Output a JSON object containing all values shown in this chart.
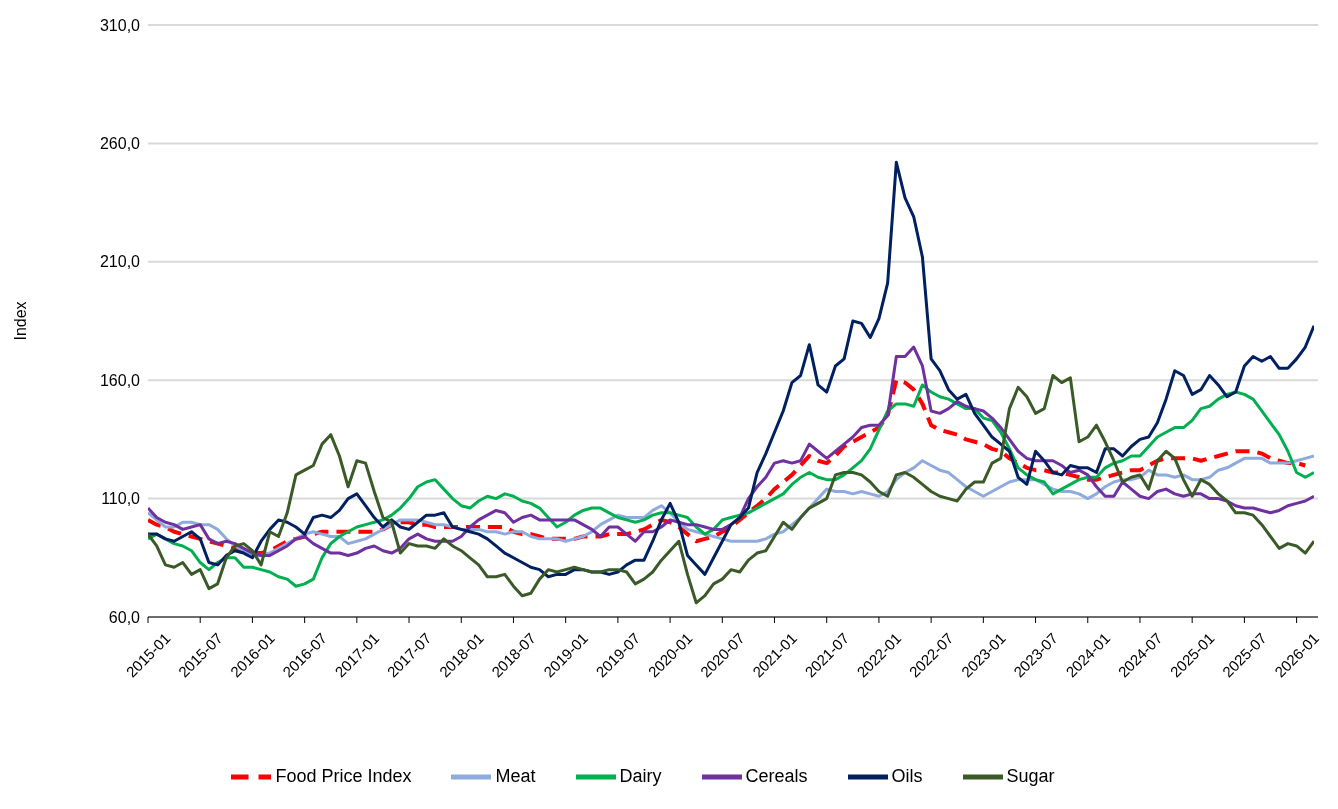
{
  "chart_data": {
    "type": "line",
    "ylabel": "Index",
    "categories": [
      "2015-01",
      null,
      null,
      null,
      null,
      null,
      "2015-07",
      null,
      null,
      null,
      null,
      null,
      "2016-01",
      null,
      null,
      null,
      null,
      null,
      "2016-07",
      null,
      null,
      null,
      null,
      null,
      "2017-01",
      null,
      null,
      null,
      null,
      null,
      "2017-07",
      null,
      null,
      null,
      null,
      null,
      "2018-01",
      null,
      null,
      null,
      null,
      null,
      "2018-07",
      null,
      null,
      null,
      null,
      null,
      "2019-01",
      null,
      null,
      null,
      null,
      null,
      "2019-07",
      null,
      null,
      null,
      null,
      null,
      "2020-01",
      null,
      null,
      null,
      null,
      null,
      "2020-07",
      null,
      null,
      null,
      null,
      null,
      "2021-01",
      null,
      null,
      null,
      null,
      null,
      "2021-07",
      null,
      null,
      null,
      null,
      null,
      "2022-01",
      null,
      null,
      null,
      null,
      null,
      "2022-07",
      null,
      null,
      null,
      null,
      null,
      "2023-01",
      null,
      null,
      null,
      null,
      null,
      "2023-07",
      null,
      null,
      null,
      null,
      null,
      "2024-01",
      null,
      null,
      null,
      null,
      null,
      "2024-07",
      null,
      null,
      null,
      null,
      null,
      "2025-01",
      null,
      null,
      null,
      null,
      null,
      "2025-07",
      null,
      null,
      null,
      null,
      null,
      "2026-01",
      null,
      null
    ],
    "ylim": [
      60,
      310
    ],
    "yticks": [
      {
        "value": 60,
        "label": "60,0"
      },
      {
        "value": 110,
        "label": "110,0"
      },
      {
        "value": 160,
        "label": "160,0"
      },
      {
        "value": 210,
        "label": "210,0"
      },
      {
        "value": 260,
        "label": "260,0"
      },
      {
        "value": 310,
        "label": "310,0"
      }
    ],
    "grid": "y",
    "legend": "bottom",
    "marker": "none",
    "series": [
      {
        "name": "Food Price Index",
        "color": "#ff0000",
        "line_style": "dashed",
        "values": [
          101,
          99,
          98,
          96,
          95,
          94,
          93,
          92,
          91,
          90,
          89,
          88,
          87,
          87,
          88,
          90,
          92,
          93,
          94,
          95,
          96,
          96,
          96,
          96,
          96,
          96,
          96,
          97,
          99,
          100,
          100,
          99,
          99,
          98,
          98,
          98,
          98,
          98,
          98,
          98,
          98,
          98,
          96,
          95,
          95,
          94,
          93,
          93,
          93,
          93,
          94,
          94,
          94,
          95,
          95,
          95,
          96,
          97,
          99,
          101,
          100,
          98,
          95,
          92,
          93,
          94,
          96,
          98,
          101,
          104,
          107,
          110,
          114,
          117,
          120,
          124,
          128,
          126,
          125,
          128,
          132,
          134,
          136,
          138,
          140,
          145,
          160,
          159,
          156,
          150,
          141,
          139,
          138,
          137,
          135,
          134,
          133,
          131,
          130,
          127,
          125,
          123,
          122,
          122,
          121,
          121,
          120,
          119,
          118,
          118,
          119,
          120,
          121,
          122,
          122,
          124,
          126,
          127,
          127,
          127,
          127,
          126,
          127,
          128,
          129,
          130,
          130,
          130,
          129,
          127,
          126,
          125,
          125,
          124,
          null
        ]
      },
      {
        "name": "Meat",
        "color": "#8faadc",
        "line_style": "solid",
        "values": [
          104,
          101,
          98,
          98,
          100,
          100,
          99,
          99,
          97,
          93,
          90,
          88,
          86,
          86,
          87,
          89,
          91,
          93,
          95,
          96,
          95,
          94,
          94,
          91,
          92,
          93,
          95,
          97,
          99,
          101,
          101,
          101,
          100,
          99,
          99,
          98,
          97,
          97,
          97,
          96,
          96,
          95,
          96,
          96,
          94,
          93,
          93,
          93,
          92,
          93,
          94,
          96,
          99,
          101,
          103,
          102,
          102,
          102,
          105,
          107,
          104,
          100,
          97,
          96,
          95,
          94,
          93,
          92,
          92,
          92,
          92,
          93,
          95,
          96,
          99,
          102,
          106,
          110,
          114,
          113,
          113,
          112,
          113,
          112,
          111,
          113,
          118,
          121,
          123,
          126,
          124,
          122,
          121,
          118,
          115,
          113,
          111,
          113,
          115,
          117,
          118,
          118,
          118,
          116,
          114,
          113,
          113,
          112,
          110,
          112,
          115,
          117,
          118,
          118,
          119,
          122,
          120,
          120,
          119,
          120,
          118,
          118,
          119,
          122,
          123,
          125,
          127,
          127,
          127,
          125,
          125,
          125,
          126,
          127,
          128
        ]
      },
      {
        "name": "Dairy",
        "color": "#00b050",
        "line_style": "solid",
        "values": [
          93,
          95,
          93,
          91,
          90,
          88,
          83,
          80,
          83,
          85,
          85,
          81,
          81,
          80,
          79,
          77,
          76,
          73,
          74,
          76,
          85,
          91,
          94,
          96,
          98,
          99,
          100,
          101,
          103,
          106,
          110,
          115,
          117,
          118,
          114,
          110,
          107,
          106,
          109,
          111,
          110,
          112,
          111,
          109,
          108,
          106,
          102,
          98,
          100,
          103,
          105,
          106,
          106,
          104,
          102,
          101,
          100,
          101,
          103,
          104,
          104,
          103,
          102,
          98,
          95,
          97,
          101,
          102,
          103,
          104,
          106,
          108,
          110,
          112,
          116,
          119,
          121,
          119,
          118,
          118,
          120,
          123,
          126,
          131,
          139,
          147,
          150,
          150,
          149,
          158,
          155,
          153,
          152,
          150,
          148,
          148,
          144,
          143,
          138,
          131,
          123,
          120,
          118,
          117,
          112,
          114,
          116,
          118,
          119,
          119,
          123,
          125,
          126,
          128,
          128,
          132,
          136,
          138,
          140,
          140,
          143,
          148,
          149,
          152,
          154,
          155,
          154,
          152,
          147,
          142,
          137,
          130,
          121,
          119,
          121
        ]
      },
      {
        "name": "Cereals",
        "color": "#7030a0",
        "line_style": "solid",
        "values": [
          106,
          102,
          100,
          99,
          97,
          98,
          99,
          93,
          91,
          92,
          91,
          89,
          87,
          86,
          86,
          88,
          90,
          93,
          94,
          91,
          89,
          87,
          87,
          86,
          87,
          89,
          90,
          88,
          87,
          89,
          93,
          95,
          93,
          92,
          92,
          92,
          94,
          98,
          101,
          103,
          105,
          104,
          100,
          102,
          103,
          101,
          101,
          101,
          101,
          101,
          99,
          97,
          94,
          98,
          98,
          95,
          92,
          96,
          96,
          98,
          101,
          100,
          99,
          99,
          98,
          97,
          97,
          99,
          102,
          110,
          115,
          119,
          125,
          126,
          125,
          126,
          133,
          130,
          127,
          130,
          133,
          136,
          140,
          141,
          141,
          145,
          170,
          170,
          174,
          166,
          147,
          146,
          148,
          151,
          149,
          148,
          147,
          144,
          140,
          135,
          130,
          127,
          126,
          126,
          126,
          124,
          121,
          122,
          120,
          115,
          111,
          111,
          117,
          114,
          111,
          110,
          113,
          114,
          112,
          111,
          112,
          112,
          110,
          110,
          109,
          107,
          106,
          106,
          105,
          104,
          105,
          107,
          108,
          109,
          111
        ]
      },
      {
        "name": "Oils",
        "color": "#002060",
        "line_style": "solid",
        "values": [
          95,
          95,
          93,
          92,
          94,
          96,
          93,
          83,
          82,
          86,
          88,
          87,
          85,
          92,
          97,
          101,
          100,
          98,
          95,
          102,
          103,
          102,
          105,
          110,
          112,
          107,
          102,
          98,
          101,
          98,
          97,
          100,
          103,
          103,
          104,
          98,
          97,
          96,
          95,
          93,
          90,
          87,
          85,
          83,
          81,
          80,
          77,
          78,
          78,
          80,
          80,
          79,
          79,
          78,
          79,
          82,
          84,
          84,
          92,
          101,
          108,
          100,
          86,
          82,
          78,
          85,
          92,
          99,
          102,
          106,
          121,
          129,
          138,
          147,
          159,
          162,
          175,
          158,
          155,
          166,
          169,
          185,
          184,
          178,
          186,
          201,
          252,
          237,
          229,
          212,
          169,
          164,
          156,
          152,
          154,
          146,
          141,
          136,
          133,
          130,
          119,
          116,
          130,
          126,
          121,
          120,
          124,
          123,
          123,
          121,
          131,
          131,
          128,
          132,
          135,
          136,
          142,
          152,
          164,
          162,
          154,
          156,
          162,
          158,
          153,
          155,
          166,
          170,
          168,
          170,
          165,
          165,
          169,
          174,
          183
        ]
      },
      {
        "name": "Sugar",
        "color": "#3a5a28",
        "line_style": "solid",
        "values": [
          95,
          90,
          82,
          81,
          83,
          78,
          80,
          72,
          74,
          85,
          90,
          91,
          88,
          82,
          96,
          94,
          104,
          120,
          122,
          124,
          133,
          137,
          128,
          115,
          126,
          125,
          113,
          102,
          100,
          87,
          91,
          90,
          90,
          89,
          93,
          90,
          88,
          85,
          82,
          77,
          77,
          78,
          73,
          69,
          70,
          76,
          80,
          79,
          80,
          81,
          80,
          79,
          79,
          80,
          80,
          79,
          74,
          76,
          79,
          84,
          88,
          92,
          78,
          66,
          69,
          74,
          76,
          80,
          79,
          84,
          87,
          88,
          94,
          100,
          97,
          102,
          106,
          108,
          110,
          120,
          121,
          121,
          120,
          117,
          113,
          111,
          120,
          121,
          119,
          116,
          113,
          111,
          110,
          109,
          114,
          117,
          117,
          125,
          127,
          148,
          157,
          153,
          146,
          148,
          162,
          159,
          161,
          134,
          136,
          141,
          134,
          126,
          117,
          119,
          120,
          114,
          126,
          130,
          127,
          118,
          111,
          118,
          116,
          112,
          109,
          104,
          104,
          103,
          99,
          94,
          89,
          91,
          90,
          87,
          92
        ]
      }
    ]
  }
}
